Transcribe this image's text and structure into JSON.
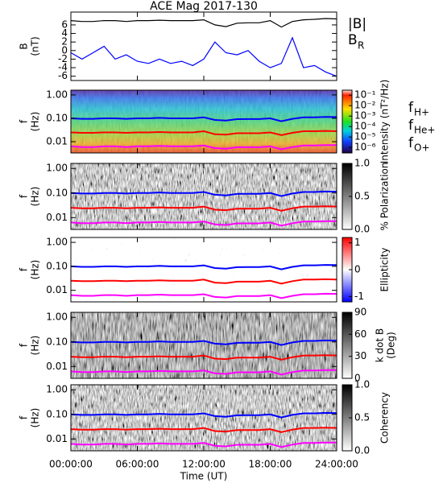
{
  "title": "ACE Mag 2017-130",
  "x_axis": {
    "xlim": [
      0,
      24
    ],
    "xlabel": "Time (UT)",
    "xticks": [
      {
        "value": 0,
        "label": "00:00:00"
      },
      {
        "value": 6,
        "label": "06:00:00"
      },
      {
        "value": 12,
        "label": "12:00:00"
      },
      {
        "value": 18,
        "label": "18:00:00"
      },
      {
        "value": 24,
        "label": "24:00:00"
      }
    ]
  },
  "chart_data": [
    {
      "type": "line",
      "ylabel": "B",
      "ylabel_unit": "(nT)",
      "ylim": [
        -7,
        9
      ],
      "yticks": [
        -6,
        -4,
        -2,
        0,
        2,
        4,
        6
      ],
      "log": false,
      "x": [
        0,
        1,
        2,
        3,
        4,
        5,
        6,
        7,
        8,
        9,
        10,
        11,
        12,
        13,
        14,
        15,
        16,
        17,
        18,
        19,
        20,
        21,
        22,
        23,
        24
      ],
      "series": [
        {
          "name": "|B|",
          "color": "#000000",
          "values": [
            7,
            6.8,
            6.8,
            7,
            7,
            6.8,
            7,
            7,
            7.1,
            7,
            7,
            7,
            7.2,
            6,
            5.6,
            6.4,
            6.5,
            6.5,
            7,
            5.5,
            6.8,
            7.2,
            7.3,
            7.5,
            7.4
          ]
        },
        {
          "name": "B",
          "name_subscript": "R",
          "color": "#0000ff",
          "values": [
            -0.5,
            -2,
            -0.5,
            1,
            -2,
            -1,
            -2.5,
            -3,
            -2,
            -3,
            -2.5,
            -3.5,
            -2,
            2,
            -0.5,
            -1,
            0,
            -2.5,
            -4,
            -3,
            3,
            -4,
            -3.5,
            -5,
            -6
          ]
        }
      ]
    },
    {
      "type": "spectrogram",
      "ylabel": "f",
      "ylabel_unit": "(Hz)",
      "ylim": [
        0.0033,
        1.6
      ],
      "log": true,
      "yticks": [
        {
          "value": 1,
          "label": "1.00"
        },
        {
          "value": 0.1,
          "label": "0.10"
        },
        {
          "value": 0.01,
          "label": "0.01"
        }
      ],
      "colormap": "rainbow",
      "clim": [
        3e-07,
        0.3
      ],
      "clog": true,
      "clabel": "Intensity (nT²/Hz)",
      "cticks": [
        {
          "value": 0.1,
          "label": "10⁻¹"
        },
        {
          "value": 0.01,
          "label": "10⁻²"
        },
        {
          "value": 0.001,
          "label": "10⁻³"
        },
        {
          "value": 0.0001,
          "label": "10⁻⁴"
        },
        {
          "value": 1e-05,
          "label": "10⁻⁵"
        },
        {
          "value": 1e-06,
          "label": "10⁻⁶"
        }
      ],
      "x": [
        0,
        1,
        2,
        3,
        4,
        5,
        6,
        7,
        8,
        9,
        10,
        11,
        12,
        13,
        14,
        15,
        16,
        17,
        18,
        19,
        20,
        21,
        22,
        23,
        24
      ],
      "series": [
        {
          "name": "f",
          "name_subscript": "H+",
          "color": "#0000ff",
          "values": [
            0.1,
            0.095,
            0.095,
            0.1,
            0.1,
            0.095,
            0.1,
            0.1,
            0.105,
            0.1,
            0.1,
            0.1,
            0.11,
            0.085,
            0.08,
            0.092,
            0.093,
            0.093,
            0.1,
            0.075,
            0.095,
            0.11,
            0.11,
            0.115,
            0.113
          ]
        },
        {
          "name": "f",
          "name_subscript": "He+",
          "color": "#ff0000",
          "values": [
            0.025,
            0.024,
            0.024,
            0.025,
            0.025,
            0.024,
            0.025,
            0.025,
            0.026,
            0.025,
            0.025,
            0.025,
            0.028,
            0.021,
            0.02,
            0.023,
            0.023,
            0.023,
            0.025,
            0.019,
            0.024,
            0.028,
            0.028,
            0.029,
            0.028
          ]
        },
        {
          "name": "f",
          "name_subscript": "O+",
          "color": "#ff00ff",
          "values": [
            0.0063,
            0.0059,
            0.0059,
            0.0063,
            0.0063,
            0.0059,
            0.0063,
            0.0063,
            0.0066,
            0.0063,
            0.0063,
            0.0063,
            0.0069,
            0.0053,
            0.005,
            0.0058,
            0.0058,
            0.0058,
            0.0063,
            0.0047,
            0.0059,
            0.0069,
            0.0069,
            0.0072,
            0.0071
          ]
        }
      ]
    },
    {
      "type": "spectrogram",
      "ylabel": "f",
      "ylabel_unit": "(Hz)",
      "ylim": [
        0.0033,
        1.6
      ],
      "log": true,
      "yticks": [
        {
          "value": 1,
          "label": "1.00"
        },
        {
          "value": 0.1,
          "label": "0.10"
        },
        {
          "value": 0.01,
          "label": "0.01"
        }
      ],
      "colormap": "gray",
      "clim": [
        0,
        1
      ],
      "clog": false,
      "clabel": "% Polarization",
      "cticks": [
        {
          "value": 0,
          "label": "0.0"
        },
        {
          "value": 0.5,
          "label": "0.5"
        },
        {
          "value": 1,
          "label": "1.0"
        }
      ],
      "x": [
        0,
        1,
        2,
        3,
        4,
        5,
        6,
        7,
        8,
        9,
        10,
        11,
        12,
        13,
        14,
        15,
        16,
        17,
        18,
        19,
        20,
        21,
        22,
        23,
        24
      ],
      "series": [
        {
          "color": "#0000ff",
          "values": [
            0.1,
            0.095,
            0.095,
            0.1,
            0.1,
            0.095,
            0.1,
            0.1,
            0.105,
            0.1,
            0.1,
            0.1,
            0.11,
            0.085,
            0.08,
            0.092,
            0.093,
            0.093,
            0.1,
            0.075,
            0.095,
            0.11,
            0.11,
            0.115,
            0.113
          ]
        },
        {
          "color": "#ff0000",
          "values": [
            0.025,
            0.024,
            0.024,
            0.025,
            0.025,
            0.024,
            0.025,
            0.025,
            0.026,
            0.025,
            0.025,
            0.025,
            0.028,
            0.021,
            0.02,
            0.023,
            0.023,
            0.023,
            0.025,
            0.019,
            0.024,
            0.028,
            0.028,
            0.029,
            0.028
          ]
        },
        {
          "color": "#ff00ff",
          "values": [
            0.0063,
            0.0059,
            0.0059,
            0.0063,
            0.0063,
            0.0059,
            0.0063,
            0.0063,
            0.0066,
            0.0063,
            0.0063,
            0.0063,
            0.0069,
            0.0053,
            0.005,
            0.0058,
            0.0058,
            0.0058,
            0.0063,
            0.0047,
            0.0059,
            0.0069,
            0.0069,
            0.0072,
            0.0071
          ]
        }
      ]
    },
    {
      "type": "spectrogram",
      "ylabel": "f",
      "ylabel_unit": "(Hz)",
      "ylim": [
        0.0033,
        1.6
      ],
      "log": true,
      "yticks": [
        {
          "value": 1,
          "label": "1.00"
        },
        {
          "value": 0.1,
          "label": "0.10"
        },
        {
          "value": 0.01,
          "label": "0.01"
        }
      ],
      "colormap": "bwr",
      "clim": [
        -1.2,
        1.2
      ],
      "clog": false,
      "clabel": "Ellipticity",
      "cticks": [
        1,
        0,
        -1
      ],
      "x": [
        0,
        1,
        2,
        3,
        4,
        5,
        6,
        7,
        8,
        9,
        10,
        11,
        12,
        13,
        14,
        15,
        16,
        17,
        18,
        19,
        20,
        21,
        22,
        23,
        24
      ],
      "series": [
        {
          "color": "#0000ff",
          "values": [
            0.1,
            0.095,
            0.095,
            0.1,
            0.1,
            0.095,
            0.1,
            0.1,
            0.105,
            0.1,
            0.1,
            0.1,
            0.11,
            0.085,
            0.08,
            0.092,
            0.093,
            0.093,
            0.1,
            0.075,
            0.095,
            0.11,
            0.11,
            0.115,
            0.113
          ]
        },
        {
          "color": "#ff0000",
          "values": [
            0.025,
            0.024,
            0.024,
            0.025,
            0.025,
            0.024,
            0.025,
            0.025,
            0.026,
            0.025,
            0.025,
            0.025,
            0.028,
            0.021,
            0.02,
            0.023,
            0.023,
            0.023,
            0.025,
            0.019,
            0.024,
            0.028,
            0.028,
            0.029,
            0.028
          ]
        },
        {
          "color": "#ff00ff",
          "values": [
            0.0063,
            0.0059,
            0.0059,
            0.0063,
            0.0063,
            0.0059,
            0.0063,
            0.0063,
            0.0066,
            0.0063,
            0.0063,
            0.0063,
            0.0069,
            0.0053,
            0.005,
            0.0058,
            0.0058,
            0.0058,
            0.0063,
            0.0047,
            0.0059,
            0.0069,
            0.0069,
            0.0072,
            0.0071
          ]
        }
      ]
    },
    {
      "type": "spectrogram",
      "ylabel": "f",
      "ylabel_unit": "(Hz)",
      "ylim": [
        0.0033,
        1.6
      ],
      "log": true,
      "yticks": [
        {
          "value": 1,
          "label": "1.00"
        },
        {
          "value": 0.1,
          "label": "0.10"
        },
        {
          "value": 0.01,
          "label": "0.01"
        }
      ],
      "colormap": "gray-dark",
      "clim": [
        0,
        90
      ],
      "clog": false,
      "clabel": "k dot B",
      "clabel_unit": "(Deg)",
      "cticks": [
        0,
        30,
        60,
        90
      ],
      "x": [
        0,
        1,
        2,
        3,
        4,
        5,
        6,
        7,
        8,
        9,
        10,
        11,
        12,
        13,
        14,
        15,
        16,
        17,
        18,
        19,
        20,
        21,
        22,
        23,
        24
      ],
      "series": [
        {
          "color": "#0000ff",
          "values": [
            0.1,
            0.095,
            0.095,
            0.1,
            0.1,
            0.095,
            0.1,
            0.1,
            0.105,
            0.1,
            0.1,
            0.1,
            0.11,
            0.085,
            0.08,
            0.092,
            0.093,
            0.093,
            0.1,
            0.075,
            0.095,
            0.11,
            0.11,
            0.115,
            0.113
          ]
        },
        {
          "color": "#ff0000",
          "values": [
            0.025,
            0.024,
            0.024,
            0.025,
            0.025,
            0.024,
            0.025,
            0.025,
            0.026,
            0.025,
            0.025,
            0.025,
            0.028,
            0.021,
            0.02,
            0.023,
            0.023,
            0.023,
            0.025,
            0.019,
            0.024,
            0.028,
            0.028,
            0.029,
            0.028
          ]
        },
        {
          "color": "#ff00ff",
          "values": [
            0.0063,
            0.0059,
            0.0059,
            0.0063,
            0.0063,
            0.0059,
            0.0063,
            0.0063,
            0.0066,
            0.0063,
            0.0063,
            0.0063,
            0.0069,
            0.0053,
            0.005,
            0.0058,
            0.0058,
            0.0058,
            0.0063,
            0.0047,
            0.0059,
            0.0069,
            0.0069,
            0.0072,
            0.0071
          ]
        }
      ]
    },
    {
      "type": "spectrogram",
      "ylabel": "f",
      "ylabel_unit": "(Hz)",
      "ylim": [
        0.0033,
        1.6
      ],
      "log": true,
      "yticks": [
        {
          "value": 1,
          "label": "1.00"
        },
        {
          "value": 0.1,
          "label": "0.10"
        },
        {
          "value": 0.01,
          "label": "0.01"
        }
      ],
      "colormap": "gray",
      "clim": [
        0,
        1
      ],
      "clog": false,
      "clabel": "Coherency",
      "cticks": [
        {
          "value": 0,
          "label": "0.0"
        },
        {
          "value": 0.5,
          "label": "0.5"
        },
        {
          "value": 1,
          "label": "1.0"
        }
      ],
      "x": [
        0,
        1,
        2,
        3,
        4,
        5,
        6,
        7,
        8,
        9,
        10,
        11,
        12,
        13,
        14,
        15,
        16,
        17,
        18,
        19,
        20,
        21,
        22,
        23,
        24
      ],
      "series": [
        {
          "color": "#0000ff",
          "values": [
            0.1,
            0.095,
            0.095,
            0.1,
            0.1,
            0.095,
            0.1,
            0.1,
            0.105,
            0.1,
            0.1,
            0.1,
            0.11,
            0.085,
            0.08,
            0.092,
            0.093,
            0.093,
            0.1,
            0.075,
            0.095,
            0.11,
            0.11,
            0.115,
            0.113
          ]
        },
        {
          "color": "#ff0000",
          "values": [
            0.025,
            0.024,
            0.024,
            0.025,
            0.025,
            0.024,
            0.025,
            0.025,
            0.026,
            0.025,
            0.025,
            0.025,
            0.028,
            0.021,
            0.02,
            0.023,
            0.023,
            0.023,
            0.025,
            0.019,
            0.024,
            0.028,
            0.028,
            0.029,
            0.028
          ]
        },
        {
          "color": "#ff00ff",
          "values": [
            0.0063,
            0.0059,
            0.0059,
            0.0063,
            0.0063,
            0.0059,
            0.0063,
            0.0063,
            0.0066,
            0.0063,
            0.0063,
            0.0063,
            0.0069,
            0.0053,
            0.005,
            0.0058,
            0.0058,
            0.0058,
            0.0063,
            0.0047,
            0.0059,
            0.0069,
            0.0069,
            0.0072,
            0.0071
          ]
        }
      ]
    }
  ]
}
